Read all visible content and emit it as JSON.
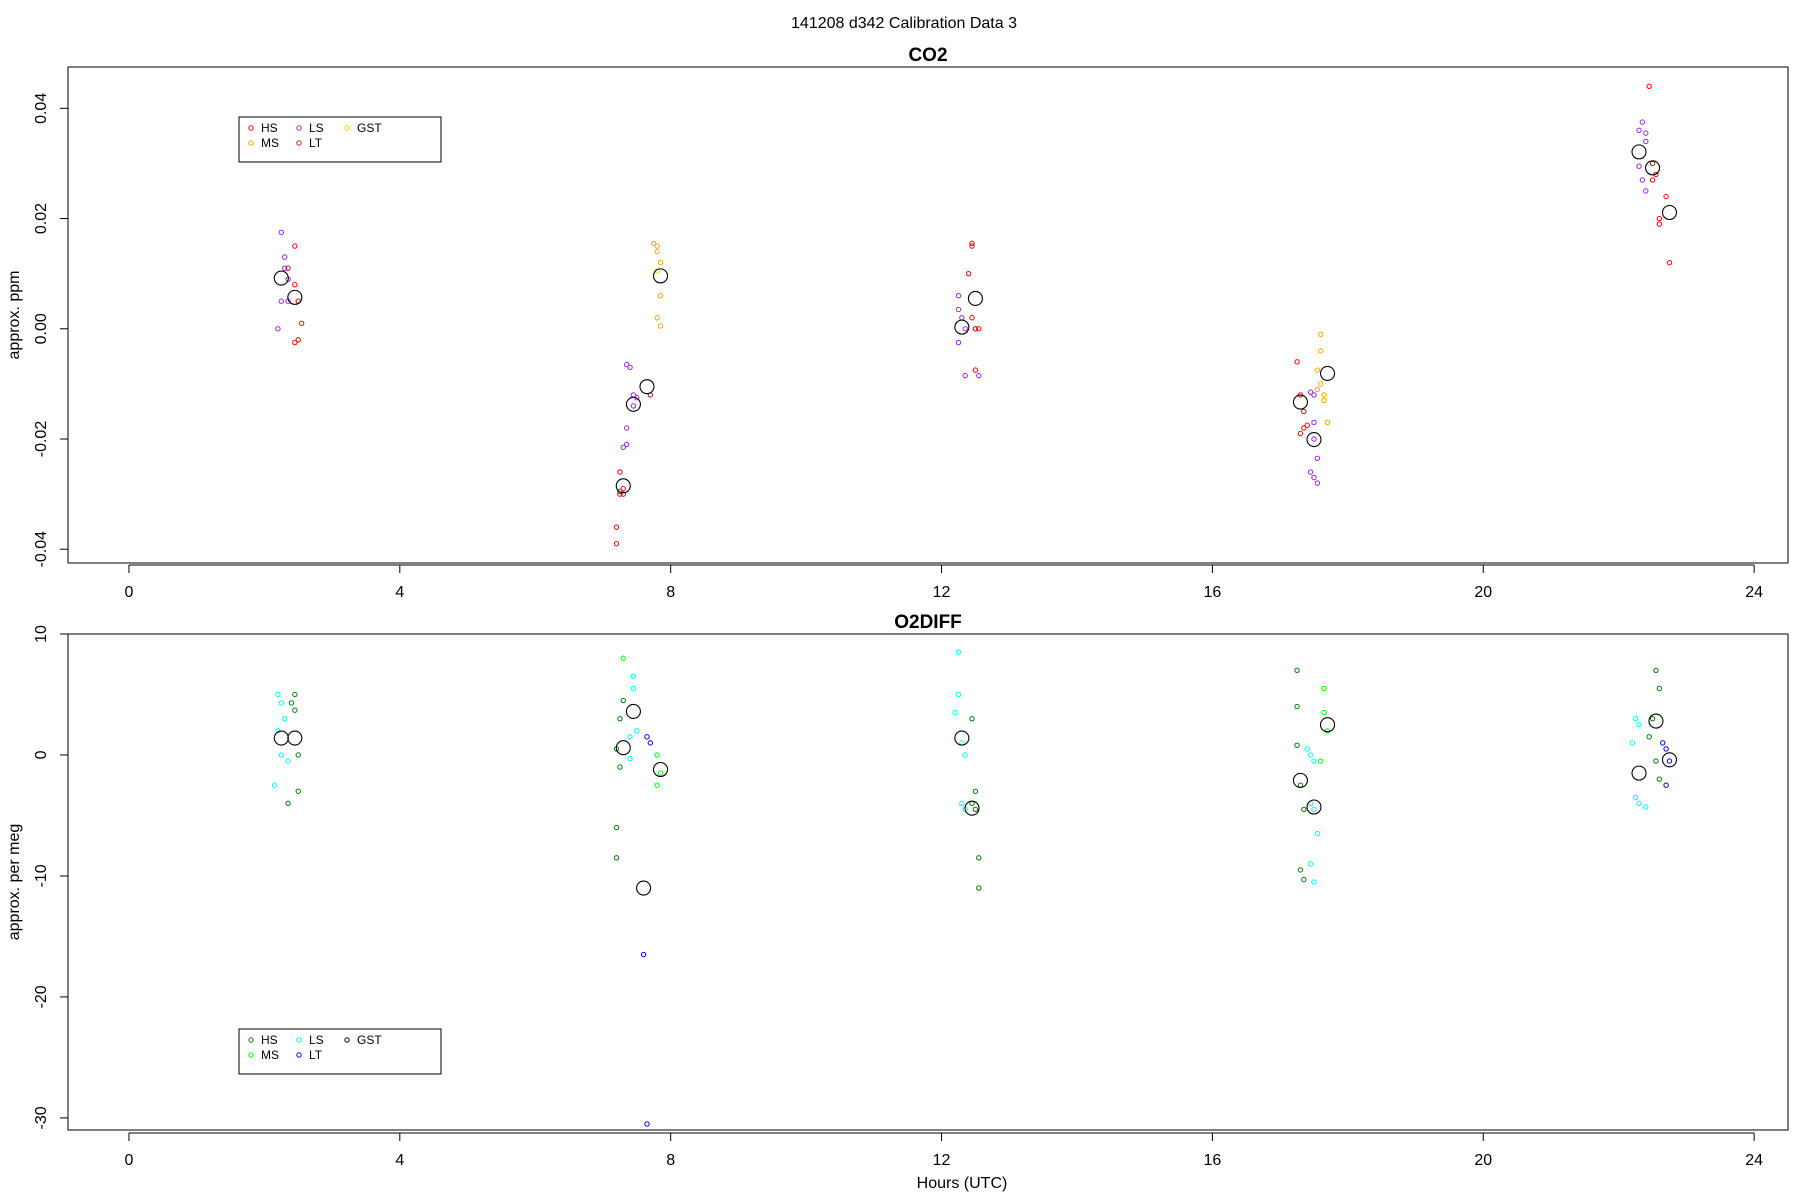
{
  "header": {
    "title": "141208   d342   Calibration Data 3"
  },
  "chart_data": [
    {
      "type": "scatter",
      "title": "CO2",
      "xlabel": "",
      "ylabel": "approx. ppm",
      "xlim": [
        -0.9,
        24.5
      ],
      "ylim": [
        -0.0425,
        0.0475
      ],
      "xticks": [
        0,
        4,
        8,
        12,
        16,
        20,
        24
      ],
      "xtick_labels": [
        "0",
        "4",
        "8",
        "12",
        "16",
        "20",
        "24"
      ],
      "yticks": [
        -0.04,
        -0.02,
        0.0,
        0.02,
        0.04
      ],
      "ytick_labels": [
        "-0.04",
        "-0.02",
        "0.00",
        "0.02",
        "0.04"
      ],
      "grid": false,
      "legend_position": "top-left",
      "legend_entries": [
        "HS",
        "MS",
        "LS",
        "LT",
        "GST"
      ],
      "series": [
        {
          "name": "HS",
          "color": "#ff0000",
          "points": [
            [
              2.45,
              0.015
            ],
            [
              2.45,
              0.008
            ],
            [
              2.5,
              0.005
            ],
            [
              2.55,
              0.001
            ],
            [
              2.5,
              -0.002
            ],
            [
              2.45,
              -0.0025
            ],
            [
              7.25,
              -0.026
            ],
            [
              7.25,
              -0.03
            ],
            [
              7.2,
              -0.036
            ],
            [
              7.2,
              -0.039
            ],
            [
              7.3,
              -0.029
            ],
            [
              17.25,
              -0.006
            ],
            [
              17.3,
              -0.012
            ],
            [
              17.35,
              -0.015
            ],
            [
              17.35,
              -0.018
            ],
            [
              17.4,
              -0.0175
            ],
            [
              17.3,
              -0.019
            ],
            [
              22.45,
              0.044
            ],
            [
              22.5,
              0.03
            ],
            [
              22.55,
              0.028
            ],
            [
              22.5,
              0.027
            ],
            [
              22.6,
              0.02
            ],
            [
              22.6,
              0.019
            ],
            [
              22.7,
              0.024
            ],
            [
              22.75,
              0.012
            ],
            [
              12.45,
              0.0155
            ],
            [
              12.45,
              0.015
            ],
            [
              12.4,
              0.01
            ],
            [
              12.45,
              0.002
            ],
            [
              12.5,
              0.0
            ],
            [
              12.55,
              0.0
            ],
            [
              12.5,
              -0.0075
            ]
          ]
        },
        {
          "name": "MS",
          "color": "#ffa500",
          "points": [
            [
              7.75,
              0.0155
            ],
            [
              7.8,
              0.015
            ],
            [
              7.8,
              0.014
            ],
            [
              7.85,
              0.012
            ],
            [
              7.85,
              0.006
            ],
            [
              7.8,
              0.002
            ],
            [
              7.85,
              0.0005
            ],
            [
              17.6,
              -0.001
            ],
            [
              17.6,
              -0.004
            ],
            [
              17.55,
              -0.0075
            ],
            [
              17.6,
              -0.01
            ],
            [
              17.65,
              -0.012
            ],
            [
              17.55,
              -0.011
            ],
            [
              17.65,
              -0.013
            ],
            [
              17.7,
              -0.017
            ]
          ]
        },
        {
          "name": "LS",
          "color": "#a020f0",
          "points": [
            [
              2.25,
              0.0175
            ],
            [
              2.3,
              0.013
            ],
            [
              2.3,
              0.011
            ],
            [
              2.35,
              0.009
            ],
            [
              2.25,
              0.005
            ],
            [
              2.35,
              0.005
            ],
            [
              2.2,
              0.0
            ],
            [
              7.35,
              -0.0065
            ],
            [
              7.4,
              -0.007
            ],
            [
              7.45,
              -0.012
            ],
            [
              7.5,
              -0.0125
            ],
            [
              7.45,
              -0.014
            ],
            [
              7.35,
              -0.018
            ],
            [
              7.35,
              -0.021
            ],
            [
              7.3,
              -0.0215
            ],
            [
              12.25,
              0.006
            ],
            [
              12.25,
              0.0035
            ],
            [
              12.3,
              0.002
            ],
            [
              12.35,
              0.0
            ],
            [
              12.25,
              -0.0025
            ],
            [
              12.35,
              -0.0085
            ],
            [
              12.55,
              -0.0085
            ],
            [
              17.45,
              -0.0115
            ],
            [
              17.5,
              -0.012
            ],
            [
              17.5,
              -0.017
            ],
            [
              17.5,
              -0.02
            ],
            [
              17.55,
              -0.0235
            ],
            [
              17.45,
              -0.026
            ],
            [
              17.5,
              -0.027
            ],
            [
              17.55,
              -0.028
            ],
            [
              22.3,
              0.036
            ],
            [
              22.35,
              0.0375
            ],
            [
              22.4,
              0.0355
            ],
            [
              22.4,
              0.034
            ],
            [
              22.3,
              0.0295
            ],
            [
              22.35,
              0.027
            ],
            [
              22.4,
              0.025
            ]
          ]
        },
        {
          "name": "LT",
          "color": "#b22222",
          "points": [
            [
              7.25,
              -0.0295
            ],
            [
              7.3,
              -0.03
            ],
            [
              7.7,
              -0.012
            ],
            [
              2.35,
              0.011
            ],
            [
              12.5,
              0.0
            ]
          ]
        },
        {
          "name": "GST",
          "color": "#ffd700",
          "points": [
            [
              7.8,
              0.0105
            ]
          ]
        },
        {
          "name": "",
          "color": "#000000",
          "marker": "large-circle",
          "points": [
            [
              2.25,
              0.0092
            ],
            [
              2.45,
              0.0057
            ],
            [
              7.3,
              -0.0285
            ],
            [
              7.45,
              -0.0137
            ],
            [
              7.65,
              -0.0105
            ],
            [
              7.85,
              0.0096
            ],
            [
              12.3,
              0.0003
            ],
            [
              12.5,
              0.0055
            ],
            [
              17.3,
              -0.0133
            ],
            [
              17.5,
              -0.0201
            ],
            [
              17.7,
              -0.0081
            ],
            [
              22.3,
              0.0321
            ],
            [
              22.5,
              0.0292
            ],
            [
              22.75,
              0.0211
            ]
          ]
        }
      ]
    },
    {
      "type": "scatter",
      "title": "O2DIFF",
      "xlabel": "Hours (UTC)",
      "ylabel": "approx. per meg",
      "xlim": [
        -0.9,
        24.5
      ],
      "ylim": [
        -31.0,
        10.0
      ],
      "xticks": [
        0,
        4,
        8,
        12,
        16,
        20,
        24
      ],
      "xtick_labels": [
        "0",
        "4",
        "8",
        "12",
        "16",
        "20",
        "24"
      ],
      "yticks": [
        -30,
        -20,
        -10,
        0,
        10
      ],
      "ytick_labels": [
        "-30",
        "-20",
        "-10",
        "0",
        "10"
      ],
      "grid": false,
      "legend_position": "bottom-left",
      "legend_entries": [
        "HS",
        "MS",
        "LS",
        "LT",
        "GST"
      ],
      "series": [
        {
          "name": "HS",
          "color": "#008000",
          "points": [
            [
              2.45,
              5.0
            ],
            [
              2.4,
              4.3
            ],
            [
              2.45,
              3.7
            ],
            [
              2.5,
              0.0
            ],
            [
              2.5,
              -3.0
            ],
            [
              2.35,
              -4.0
            ],
            [
              7.3,
              4.5
            ],
            [
              7.25,
              3.0
            ],
            [
              7.2,
              0.5
            ],
            [
              7.25,
              -1.0
            ],
            [
              7.2,
              -6.0
            ],
            [
              7.2,
              -8.5
            ],
            [
              12.45,
              3.0
            ],
            [
              12.5,
              -3.0
            ],
            [
              12.45,
              -4.0
            ],
            [
              12.5,
              -4.5
            ],
            [
              12.55,
              -8.5
            ],
            [
              12.55,
              -11.0
            ],
            [
              17.25,
              7.0
            ],
            [
              17.25,
              4.0
            ],
            [
              17.25,
              0.8
            ],
            [
              17.3,
              -2.5
            ],
            [
              17.35,
              -4.5
            ],
            [
              17.3,
              -9.5
            ],
            [
              17.35,
              -10.3
            ],
            [
              22.55,
              7.0
            ],
            [
              22.6,
              5.5
            ],
            [
              22.5,
              3.0
            ],
            [
              22.45,
              1.5
            ],
            [
              22.55,
              -0.5
            ],
            [
              22.6,
              -2.0
            ]
          ]
        },
        {
          "name": "MS",
          "color": "#00ff00",
          "points": [
            [
              7.8,
              0.0
            ],
            [
              7.85,
              -1.5
            ],
            [
              7.8,
              -2.5
            ],
            [
              7.3,
              8.0
            ],
            [
              17.65,
              5.5
            ],
            [
              17.65,
              3.5
            ],
            [
              17.7,
              2.0
            ],
            [
              17.6,
              -0.5
            ]
          ]
        },
        {
          "name": "LS",
          "color": "#00ffff",
          "points": [
            [
              2.2,
              5.0
            ],
            [
              2.25,
              4.3
            ],
            [
              2.3,
              3.0
            ],
            [
              2.2,
              2.0
            ],
            [
              2.25,
              0.0
            ],
            [
              2.35,
              -0.5
            ],
            [
              2.15,
              -2.5
            ],
            [
              7.45,
              6.5
            ],
            [
              7.45,
              5.5
            ],
            [
              7.5,
              2.0
            ],
            [
              7.4,
              1.5
            ],
            [
              7.4,
              -0.3
            ],
            [
              12.25,
              8.5
            ],
            [
              12.25,
              5.0
            ],
            [
              12.2,
              3.5
            ],
            [
              12.3,
              1.0
            ],
            [
              12.35,
              0.0
            ],
            [
              12.3,
              -4.0
            ],
            [
              12.35,
              -4.5
            ],
            [
              17.4,
              0.5
            ],
            [
              17.45,
              0.0
            ],
            [
              17.5,
              -0.5
            ],
            [
              17.45,
              -4.0
            ],
            [
              17.5,
              -4.5
            ],
            [
              17.55,
              -6.5
            ],
            [
              17.45,
              -9.0
            ],
            [
              17.5,
              -10.5
            ],
            [
              22.25,
              3.0
            ],
            [
              22.3,
              2.5
            ],
            [
              22.2,
              1.0
            ],
            [
              22.25,
              -3.5
            ],
            [
              22.3,
              -4.0
            ],
            [
              22.4,
              -4.3
            ]
          ]
        },
        {
          "name": "LT",
          "color": "#0000ff",
          "points": [
            [
              7.65,
              1.5
            ],
            [
              7.7,
              1.0
            ],
            [
              7.6,
              -16.5
            ],
            [
              7.65,
              -30.5
            ],
            [
              22.65,
              1.0
            ],
            [
              22.7,
              0.5
            ],
            [
              22.75,
              -0.5
            ],
            [
              22.7,
              -2.5
            ]
          ]
        },
        {
          "name": "",
          "color": "#000000",
          "marker": "large-circle",
          "points": [
            [
              2.25,
              1.4
            ],
            [
              2.45,
              1.4
            ],
            [
              7.3,
              0.6
            ],
            [
              7.45,
              3.6
            ],
            [
              7.6,
              -11.0
            ],
            [
              7.85,
              -1.2
            ],
            [
              12.3,
              1.4
            ],
            [
              12.45,
              -4.4
            ],
            [
              17.3,
              -2.1
            ],
            [
              17.5,
              -4.3
            ],
            [
              17.7,
              2.5
            ],
            [
              22.3,
              -1.5
            ],
            [
              22.55,
              2.8
            ],
            [
              22.75,
              -0.4
            ]
          ]
        }
      ]
    }
  ]
}
